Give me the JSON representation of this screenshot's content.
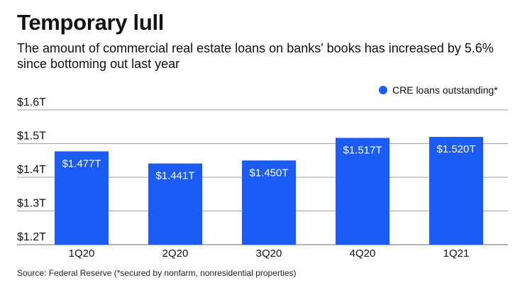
{
  "chart_data": {
    "type": "bar",
    "title": "Temporary lull",
    "subtitle": "The amount of commercial real estate loans on banks' books has increased by 5.6% since bottoming out last year",
    "categories": [
      "1Q20",
      "2Q20",
      "3Q20",
      "4Q20",
      "1Q21"
    ],
    "series": [
      {
        "name": "CRE loans outstanding*",
        "values": [
          1.477,
          1.441,
          1.45,
          1.517,
          1.52
        ]
      }
    ],
    "data_labels": [
      "$1.477T",
      "$1.441T",
      "$1.450T",
      "$1.517T",
      "$1.520T"
    ],
    "yticks": [
      1.2,
      1.3,
      1.4,
      1.5,
      1.6
    ],
    "ytick_labels": [
      "$1.2T",
      "$1.3T",
      "$1.4T",
      "$1.5T",
      "$1.6T"
    ],
    "ylim": [
      1.2,
      1.6
    ],
    "xlabel": "",
    "ylabel": "",
    "grid": true,
    "legend_position": "top-right",
    "bar_color": "#1a5cf5",
    "source": "Source: Federal Reserve (*secured by nonfarm, nonresidential properties)"
  }
}
